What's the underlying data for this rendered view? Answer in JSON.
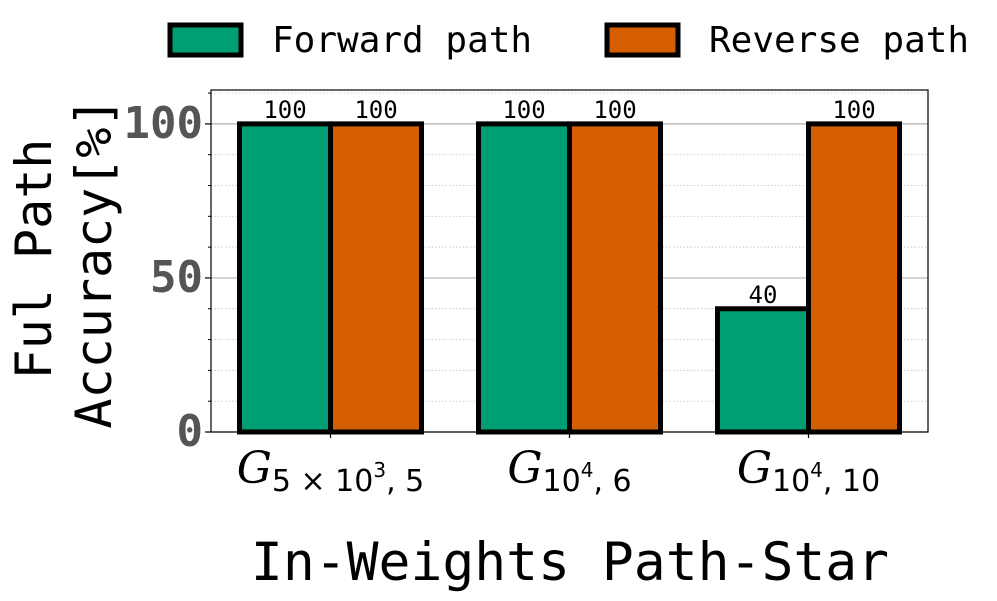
{
  "chart_data": {
    "type": "bar",
    "xlabel": "In-Weights Path-Star",
    "ylabel_lines": [
      "Ful Path",
      "Accuracy[%]"
    ],
    "categories": [
      {
        "base": "G",
        "sub": "5 × 10",
        "sup": "3",
        "tail": ", 5"
      },
      {
        "base": "G",
        "sub": "10",
        "sup": "4",
        "tail": ", 6"
      },
      {
        "base": "G",
        "sub": "10",
        "sup": "4",
        "tail": ", 10"
      }
    ],
    "series": [
      {
        "name": "Forward path",
        "color": "#009E73",
        "values": [
          100,
          100,
          40
        ]
      },
      {
        "name": "Reverse path",
        "color": "#D55E00",
        "values": [
          100,
          100,
          100
        ]
      }
    ],
    "ylim": [
      0,
      111
    ],
    "yticks": [
      0,
      50,
      100
    ],
    "ytick_labels": [
      "0",
      "50",
      "100"
    ],
    "minor_ytick_step": 10,
    "grid": true,
    "legend_position": "top"
  }
}
